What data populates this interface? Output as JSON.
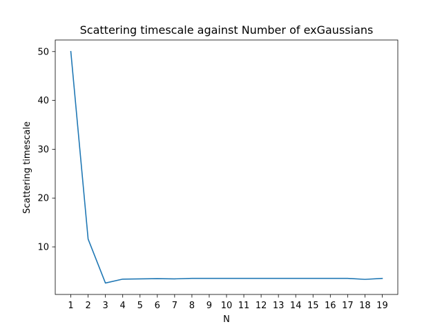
{
  "chart_data": {
    "type": "line",
    "title": "Scattering timescale against Number of exGaussians",
    "xlabel": "N",
    "ylabel": "Scattering timescale",
    "x": [
      1,
      2,
      3,
      4,
      5,
      6,
      7,
      8,
      9,
      10,
      11,
      12,
      13,
      14,
      15,
      16,
      17,
      18,
      19
    ],
    "series": [
      {
        "values": [
          50.0,
          11.6,
          2.6,
          3.4,
          3.45,
          3.5,
          3.45,
          3.55,
          3.55,
          3.55,
          3.55,
          3.55,
          3.55,
          3.55,
          3.55,
          3.55,
          3.55,
          3.35,
          3.55
        ],
        "color": "#1f77b4"
      }
    ],
    "xticks": [
      "1",
      "2",
      "3",
      "4",
      "5",
      "6",
      "7",
      "8",
      "9",
      "10",
      "11",
      "12",
      "13",
      "14",
      "15",
      "16",
      "17",
      "18",
      "19"
    ],
    "yticks": [
      "10",
      "20",
      "30",
      "40",
      "50"
    ],
    "xlim": [
      0.1,
      19.9
    ],
    "ylim": [
      0.26,
      52.37
    ],
    "grid": false,
    "legend": "none"
  }
}
